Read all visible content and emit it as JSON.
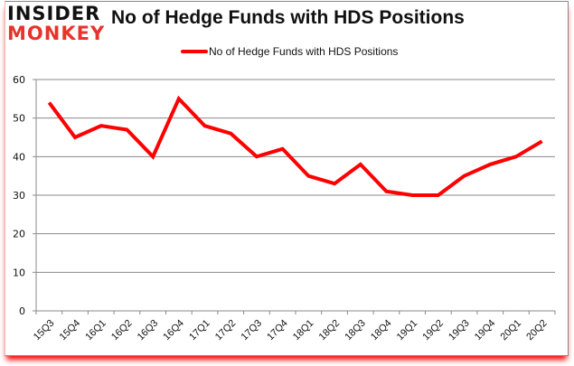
{
  "brand": {
    "line1": "INSIDER",
    "line2": "MONKEY",
    "line1_color": "#111111",
    "line2_color": "#e8332a"
  },
  "chart_data": {
    "type": "line",
    "title": "No of Hedge Funds with HDS Positions",
    "xlabel": "",
    "ylabel": "",
    "ylim": [
      0,
      60
    ],
    "yticks": [
      0,
      10,
      20,
      30,
      40,
      50,
      60
    ],
    "grid": true,
    "legend_position": "top",
    "categories": [
      "15Q3",
      "15Q4",
      "16Q1",
      "16Q2",
      "16Q3",
      "16Q4",
      "17Q1",
      "17Q2",
      "17Q3",
      "17Q4",
      "18Q1",
      "18Q2",
      "18Q3",
      "18Q4",
      "19Q1",
      "19Q2",
      "19Q3",
      "19Q4",
      "20Q1",
      "20Q2"
    ],
    "series": [
      {
        "name": "No of Hedge Funds with HDS Positions",
        "color": "#ff0000",
        "values": [
          54,
          45,
          48,
          47,
          40,
          55,
          48,
          46,
          40,
          42,
          35,
          33,
          38,
          31,
          30,
          30,
          35,
          38,
          40,
          44
        ]
      }
    ]
  }
}
